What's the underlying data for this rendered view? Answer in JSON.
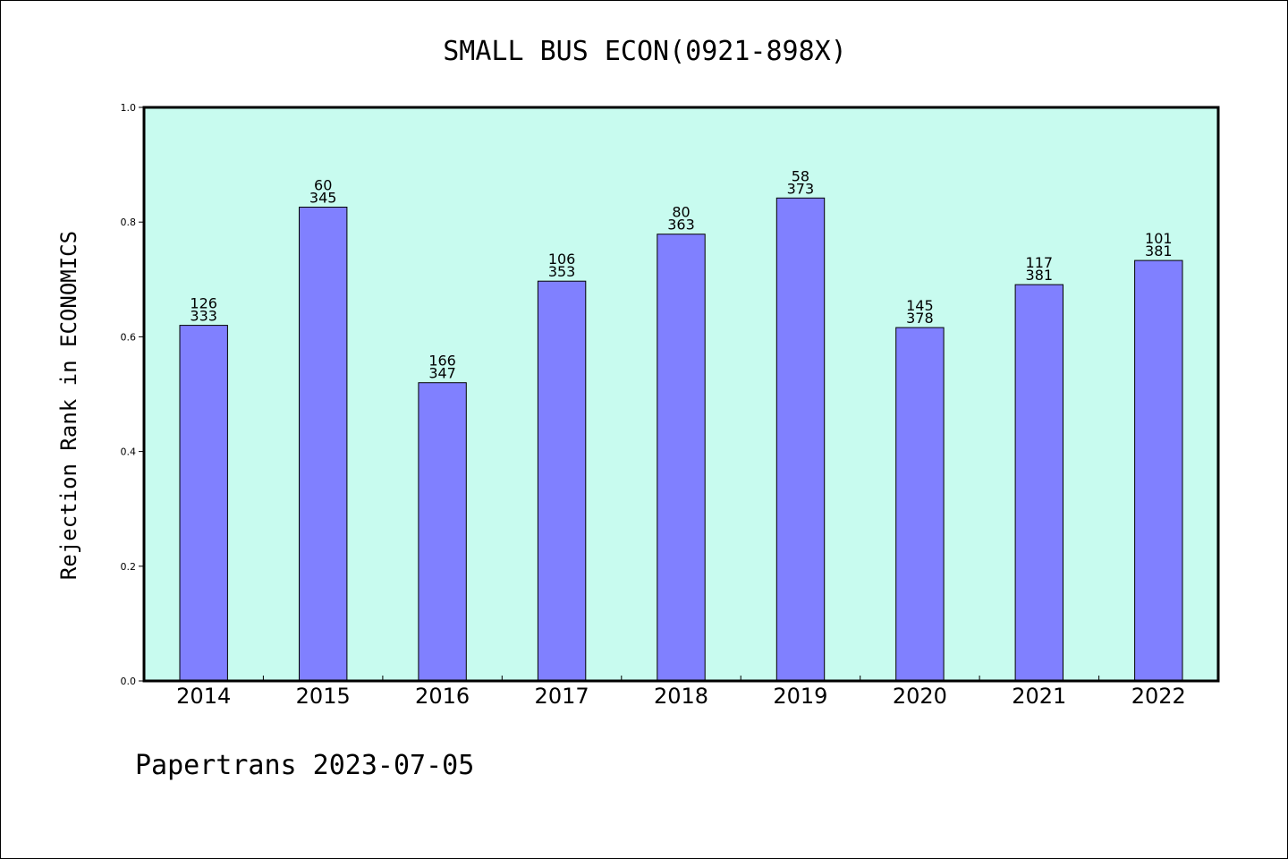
{
  "chart_data": {
    "type": "bar",
    "title": "SMALL BUS ECON(0921-898X)",
    "xlabel": "",
    "ylabel": "Rejection Rank in ECONOMICS",
    "footer": "Papertrans 2023-07-05",
    "categories": [
      "2014",
      "2015",
      "2016",
      "2017",
      "2018",
      "2019",
      "2020",
      "2021",
      "2022"
    ],
    "values": [
      0.62,
      0.826,
      0.52,
      0.697,
      0.779,
      0.842,
      0.616,
      0.691,
      0.733
    ],
    "label_top": [
      "126",
      "60",
      "166",
      "106",
      "80",
      "58",
      "145",
      "117",
      "101"
    ],
    "label_bottom": [
      "333",
      "345",
      "347",
      "353",
      "363",
      "373",
      "378",
      "381",
      "381"
    ],
    "ylim": [
      0,
      1.0
    ],
    "yticks": [
      "0.0",
      "0.2",
      "0.4",
      "0.6",
      "0.8",
      "1.0"
    ],
    "grid": false,
    "colors": {
      "plot_background": "#c8fbef",
      "bar_fill": "#8080ff",
      "bar_edge": "#000000",
      "axis": "#000000"
    }
  }
}
